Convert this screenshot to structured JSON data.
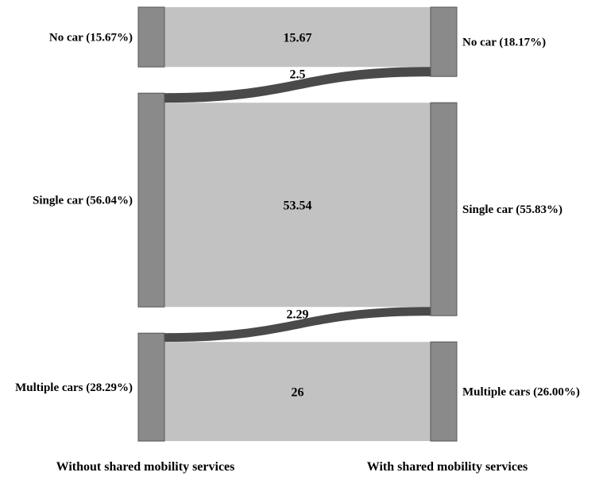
{
  "chart_data": {
    "type": "sankey",
    "left_axis_label": "Without shared mobility services",
    "right_axis_label": "With shared mobility services",
    "left_nodes": [
      {
        "id": "no-car",
        "label": "No car (15.67%)",
        "value": 15.67
      },
      {
        "id": "single-car",
        "label": "Single car (56.04%)",
        "value": 56.04
      },
      {
        "id": "multiple-cars",
        "label": "Multiple cars (28.29%)",
        "value": 28.29
      }
    ],
    "right_nodes": [
      {
        "id": "no-car",
        "label": "No car (18.17%)",
        "value": 18.17
      },
      {
        "id": "single-car",
        "label": "Single car (55.83%)",
        "value": 55.83
      },
      {
        "id": "multiple-cars",
        "label": "Multiple cars (26.00%)",
        "value": 26.0
      }
    ],
    "flows": [
      {
        "source": "no-car",
        "target": "no-car",
        "value": 15.67,
        "label": "15.67"
      },
      {
        "source": "single-car",
        "target": "no-car",
        "value": 2.5,
        "label": "2.5"
      },
      {
        "source": "single-car",
        "target": "single-car",
        "value": 53.54,
        "label": "53.54"
      },
      {
        "source": "multiple-cars",
        "target": "single-car",
        "value": 2.29,
        "label": "2.29"
      },
      {
        "source": "multiple-cars",
        "target": "multiple-cars",
        "value": 26,
        "label": "26"
      }
    ],
    "colors": {
      "node": "#8a8a8a",
      "node_stroke": "#555555",
      "flow_same": "#c2c2c2",
      "flow_shift": "#4a4a4a"
    }
  }
}
